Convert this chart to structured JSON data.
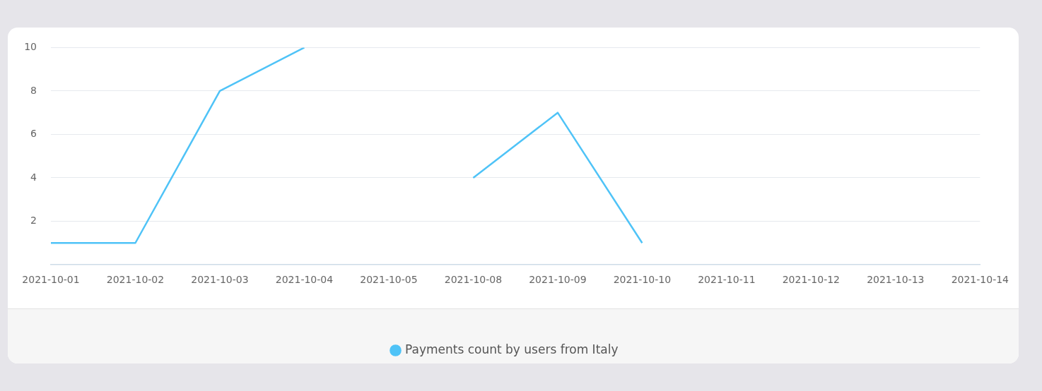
{
  "chart_data": {
    "type": "line",
    "categories": [
      "2021-10-01",
      "2021-10-02",
      "2021-10-03",
      "2021-10-04",
      "2021-10-05",
      "2021-10-08",
      "2021-10-09",
      "2021-10-10",
      "2021-10-11",
      "2021-10-12",
      "2021-10-13",
      "2021-10-14"
    ],
    "series": [
      {
        "name": "Payments count by users from Italy",
        "color": "#4fc3f7",
        "values": [
          1,
          1,
          8,
          10,
          null,
          4,
          7,
          1,
          null,
          null,
          null,
          null
        ]
      }
    ],
    "ylim": [
      0,
      10
    ],
    "yticks": [
      2,
      4,
      6,
      8,
      10
    ],
    "grid": "y",
    "legend": "bottom",
    "marker": "none"
  }
}
